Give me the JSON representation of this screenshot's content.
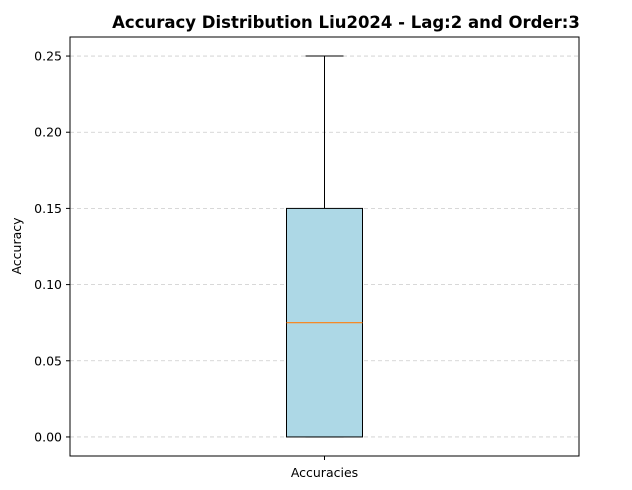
{
  "chart_data": {
    "type": "box",
    "title": "Accuracy Distribution Liu2024 - Lag:2 and Order:3",
    "xlabel": "",
    "ylabel": "Accuracy",
    "categories": [
      "Accuracies"
    ],
    "boxes": [
      {
        "name": "Accuracies",
        "whisker_low": 0.0,
        "q1": 0.0,
        "median": 0.075,
        "q3": 0.15,
        "whisker_high": 0.25
      }
    ],
    "ylim": [
      -0.0125,
      0.2625
    ],
    "yticks": [
      0.0,
      0.05,
      0.1,
      0.15,
      0.2,
      0.25
    ],
    "ytick_labels": [
      "0.00",
      "0.05",
      "0.10",
      "0.15",
      "0.20",
      "0.25"
    ],
    "grid": "y-dashed",
    "colors": {
      "box_fill": "#add8e6",
      "median_line": "#ff7f0e",
      "grid": "#cccccc",
      "edges": "#000000"
    }
  }
}
